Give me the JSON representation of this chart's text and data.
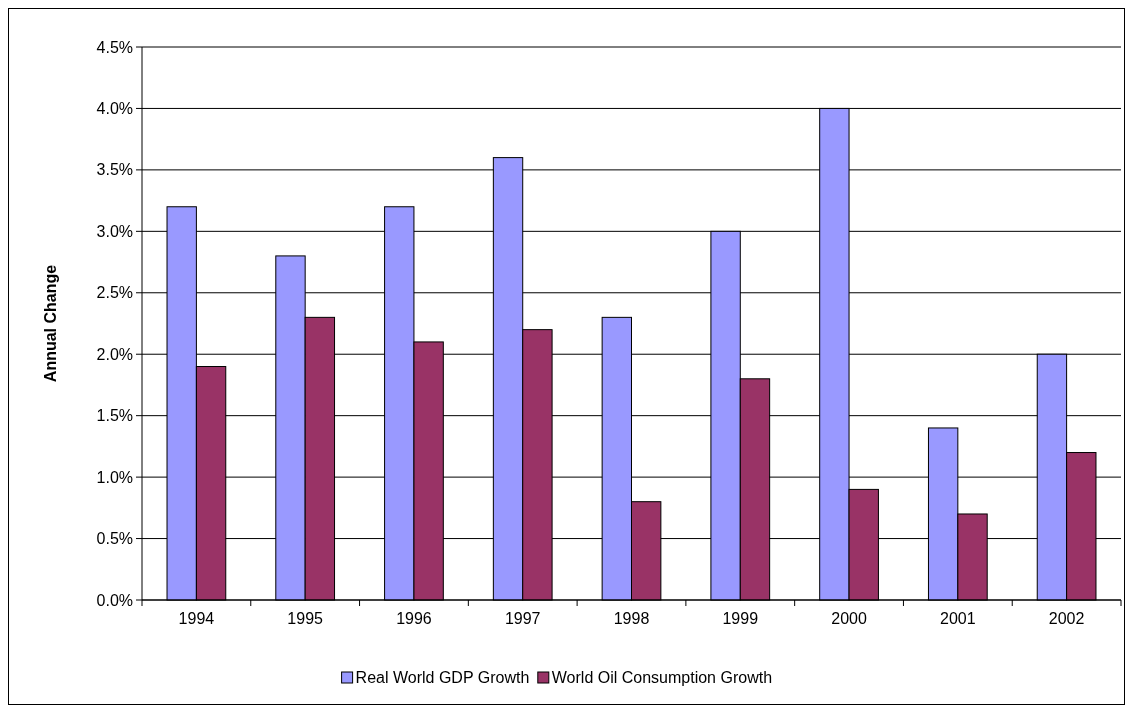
{
  "chart_data": {
    "type": "bar",
    "ylabel": "Annual Change",
    "categories": [
      "1994",
      "1995",
      "1996",
      "1997",
      "1998",
      "1999",
      "2000",
      "2001",
      "2002"
    ],
    "series": [
      {
        "name": "Real World GDP Growth",
        "color": "#9999ff",
        "values": [
          3.2,
          2.8,
          3.2,
          3.6,
          2.3,
          3.0,
          4.0,
          1.4,
          2.0
        ]
      },
      {
        "name": "World Oil Consumption Growth",
        "color": "#993366",
        "values": [
          1.9,
          2.3,
          2.1,
          2.2,
          0.8,
          1.8,
          0.9,
          0.7,
          1.2
        ]
      }
    ],
    "ylim": [
      0,
      4.5
    ],
    "yticks": [
      {
        "value": 0,
        "label": "0.0%"
      },
      {
        "value": 0.5,
        "label": "0.5%"
      },
      {
        "value": 1,
        "label": "1.0%"
      },
      {
        "value": 1.5,
        "label": "1.5%"
      },
      {
        "value": 2,
        "label": "2.0%"
      },
      {
        "value": 2.5,
        "label": "2.5%"
      },
      {
        "value": 3,
        "label": "3.0%"
      },
      {
        "value": 3.5,
        "label": "3.5%"
      },
      {
        "value": 4,
        "label": "4.0%"
      },
      {
        "value": 4.5,
        "label": "4.5%"
      }
    ],
    "grid": "y",
    "legend": "bottom"
  }
}
